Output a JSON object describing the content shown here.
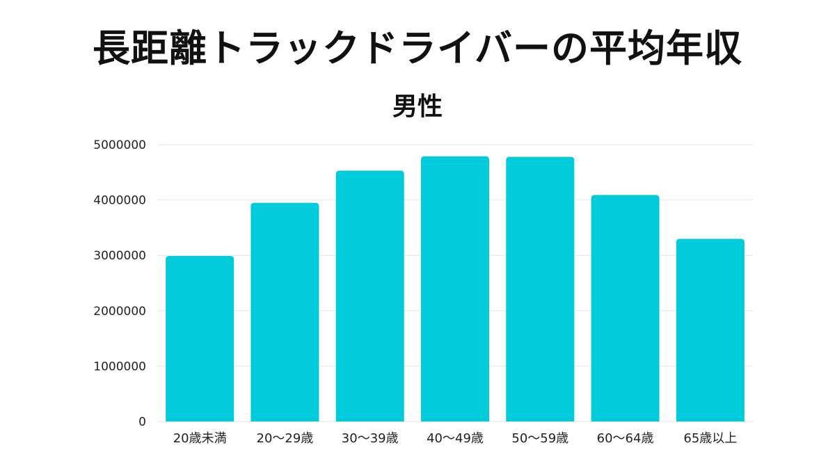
{
  "chart_data": {
    "type": "bar",
    "title": "長距離トラックドライバーの平均年収",
    "subtitle": "男性",
    "xlabel": "",
    "ylabel": "",
    "categories": [
      "20歳未満",
      "20〜29歳",
      "30〜39歳",
      "40〜49歳",
      "50〜59歳",
      "60〜64歳",
      "65歳以上"
    ],
    "values": [
      2990000,
      3950000,
      4530000,
      4790000,
      4780000,
      4090000,
      3300000
    ],
    "ylim": [
      0,
      5000000
    ],
    "yticks": [
      "0",
      "1000000",
      "2000000",
      "3000000",
      "4000000",
      "5000000"
    ],
    "grid": true,
    "bar_color": "#00CBDB",
    "grid_color": "#E6E6E6"
  }
}
